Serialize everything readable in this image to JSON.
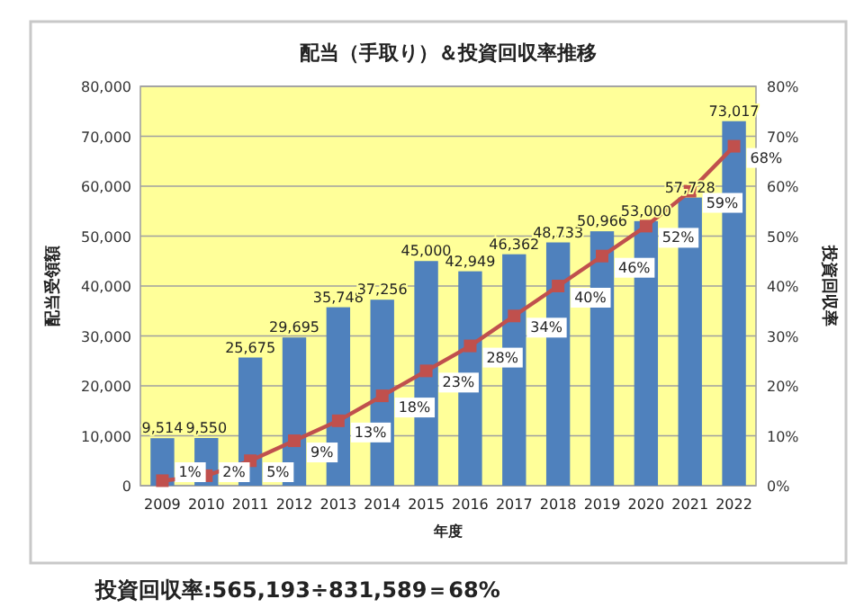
{
  "chart_data": {
    "type": "bar",
    "title": "配当（手取り）＆投資回収率推移",
    "xlabel": "年度",
    "ylabel": "配当受領額",
    "y2label": "投資回収率",
    "categories": [
      "2009",
      "2010",
      "2011",
      "2012",
      "2013",
      "2014",
      "2015",
      "2016",
      "2017",
      "2018",
      "2019",
      "2020",
      "2021",
      "2022"
    ],
    "series": [
      {
        "color": "#4f81bd",
        "values": [
          9514,
          9550,
          25675,
          29695,
          35748,
          37256,
          45000,
          42949,
          46362,
          48733,
          50966,
          53000,
          57728,
          73017
        ],
        "value_labels": [
          "9,514",
          "9,550",
          "25,675",
          "29,695",
          "35,748",
          "37,256",
          "45,000",
          "42,949",
          "46,362",
          "48,733",
          "50,966",
          "53,000",
          "57,728",
          "73,017"
        ]
      },
      {
        "type": "line",
        "axis": "y2",
        "color": "#c0504d",
        "marker": "square",
        "values": [
          1,
          2,
          5,
          9,
          13,
          18,
          23,
          28,
          34,
          40,
          46,
          52,
          59,
          68
        ],
        "value_labels": [
          "1%",
          "2%",
          "5%",
          "9%",
          "13%",
          "18%",
          "23%",
          "28%",
          "34%",
          "40%",
          "46%",
          "52%",
          "59%",
          "68%"
        ]
      }
    ],
    "ylim": [
      0,
      80000
    ],
    "yticks": [
      {
        "value": 0,
        "label": "0"
      },
      {
        "value": 10000,
        "label": "10,000"
      },
      {
        "value": 20000,
        "label": "20,000"
      },
      {
        "value": 30000,
        "label": "30,000"
      },
      {
        "value": 40000,
        "label": "40,000"
      },
      {
        "value": 50000,
        "label": "50,000"
      },
      {
        "value": 60000,
        "label": "60,000"
      },
      {
        "value": 70000,
        "label": "70,000"
      },
      {
        "value": 80000,
        "label": "80,000"
      }
    ],
    "y2lim": [
      0,
      80
    ],
    "y2ticks": [
      {
        "value": 0,
        "label": "0%"
      },
      {
        "value": 10,
        "label": "10%"
      },
      {
        "value": 20,
        "label": "20%"
      },
      {
        "value": 30,
        "label": "30%"
      },
      {
        "value": 40,
        "label": "40%"
      },
      {
        "value": 50,
        "label": "50%"
      },
      {
        "value": 60,
        "label": "60%"
      },
      {
        "value": 70,
        "label": "70%"
      },
      {
        "value": 80,
        "label": "80%"
      }
    ],
    "grid": "y",
    "annotations": [
      "投資回収率:565,193÷831,589＝68%"
    ]
  }
}
